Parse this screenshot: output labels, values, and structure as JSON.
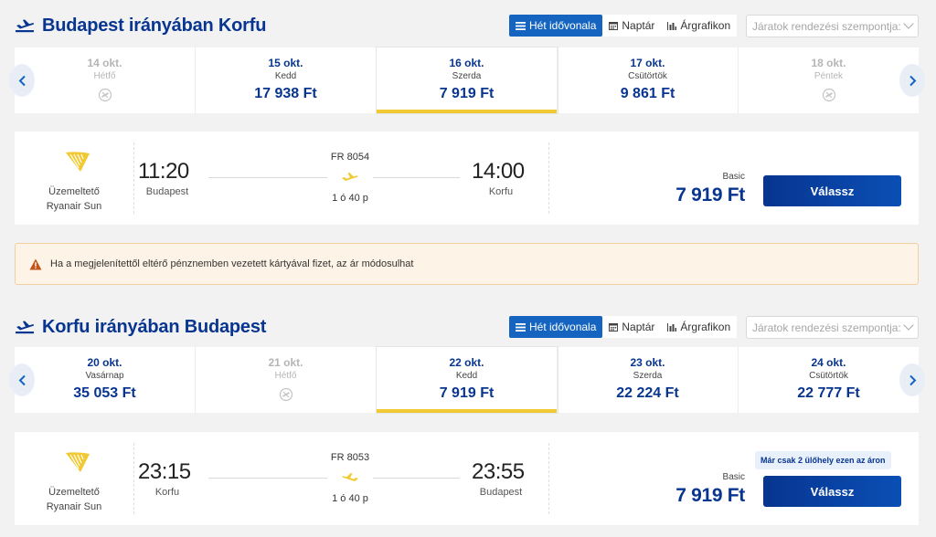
{
  "outbound": {
    "title": "Budapest irányában Korfu",
    "view_tabs": [
      "Hét idővonala",
      "Naptár",
      "Árgrafikon"
    ],
    "sort_placeholder": "Járatok rendezési szempontja:",
    "dates": [
      {
        "date": "14 okt.",
        "day": "Hétfő",
        "price": "",
        "available": false
      },
      {
        "date": "15 okt.",
        "day": "Kedd",
        "price": "17 938 Ft",
        "available": true
      },
      {
        "date": "16 okt.",
        "day": "Szerda",
        "price": "7 919 Ft",
        "available": true,
        "selected": true
      },
      {
        "date": "17 okt.",
        "day": "Csütörtök",
        "price": "9 861 Ft",
        "available": true
      },
      {
        "date": "18 okt.",
        "day": "Péntek",
        "price": "",
        "available": false
      }
    ],
    "flight": {
      "operator_label": "Üzemeltető",
      "operator_name": "Ryanair Sun",
      "depart_time": "11:20",
      "depart_city": "Budapest",
      "flight_number": "FR 8054",
      "duration": "1 ó 40 p",
      "arrive_time": "14:00",
      "arrive_city": "Korfu",
      "fare_type": "Basic",
      "price": "7 919 Ft",
      "choose_label": "Válassz"
    }
  },
  "warning": {
    "text": "Ha a megjelenítettől eltérő pénznemben vezetett kártyával fizet, az ár módosulhat"
  },
  "inbound": {
    "title": "Korfu irányában Budapest",
    "view_tabs": [
      "Hét idővonala",
      "Naptár",
      "Árgrafikon"
    ],
    "sort_placeholder": "Járatok rendezési szempontja:",
    "dates": [
      {
        "date": "20 okt.",
        "day": "Vasárnap",
        "price": "35 053 Ft",
        "available": true
      },
      {
        "date": "21 okt.",
        "day": "Hétfő",
        "price": "",
        "available": false
      },
      {
        "date": "22 okt.",
        "day": "Kedd",
        "price": "7 919 Ft",
        "available": true,
        "selected": true
      },
      {
        "date": "23 okt.",
        "day": "Szerda",
        "price": "22 224 Ft",
        "available": true
      },
      {
        "date": "24 okt.",
        "day": "Csütörtök",
        "price": "22 777 Ft",
        "available": true
      }
    ],
    "flight": {
      "operator_label": "Üzemeltető",
      "operator_name": "Ryanair Sun",
      "depart_time": "23:15",
      "depart_city": "Korfu",
      "flight_number": "FR 8053",
      "duration": "1 ó 40 p",
      "arrive_time": "23:55",
      "arrive_city": "Budapest",
      "fare_type": "Basic",
      "price": "7 919 Ft",
      "choose_label": "Válassz",
      "seats_badge": "Már csak 2 ülőhely ezen az áron"
    }
  },
  "colors": {
    "brand_blue": "#073590",
    "accent_yellow": "#f1c933",
    "active_tab": "#1565c0",
    "warning_bg": "#fdf3e6",
    "warning_icon": "#c0541a"
  },
  "icons": {
    "direction": "plane-takeoff-icon",
    "prev": "chevron-left-icon",
    "next": "chevron-right-icon",
    "no_flight": "no-flight-icon",
    "operator": "ryanair-harp-logo",
    "warning": "warning-triangle-icon"
  }
}
